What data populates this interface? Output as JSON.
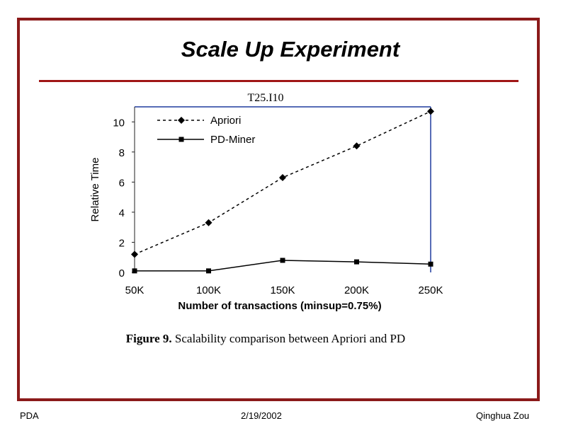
{
  "slide": {
    "title": "Scale Up Experiment",
    "subtitle": "T25.I10",
    "caption_lead": "Figure 9.",
    "caption_text": "Scalability comparison between Apriori and PD",
    "footer_left": "PDA",
    "footer_center": "2/19/2002",
    "footer_right": "Qinghua Zou"
  },
  "colors": {
    "frame": "#8b1a1a",
    "rule": "#a01616",
    "axis_box": "#1f3c9e"
  },
  "chart_data": {
    "type": "line",
    "title": "T25.I10",
    "xlabel": "Number of transactions (minsup=0.75%)",
    "ylabel": "Relative Time",
    "categories": [
      "50K",
      "100K",
      "150K",
      "200K",
      "250K"
    ],
    "ylim": [
      0,
      11
    ],
    "yticks": [
      0,
      2,
      4,
      6,
      8,
      10
    ],
    "legend_position": "top-left",
    "series": [
      {
        "name": "Apriori",
        "values": [
          1.2,
          3.3,
          6.3,
          8.4,
          10.7
        ],
        "marker": "diamond",
        "line": "dashed"
      },
      {
        "name": "PD-Miner",
        "values": [
          0.1,
          0.1,
          0.8,
          0.7,
          0.55
        ],
        "marker": "square",
        "line": "solid"
      }
    ]
  }
}
